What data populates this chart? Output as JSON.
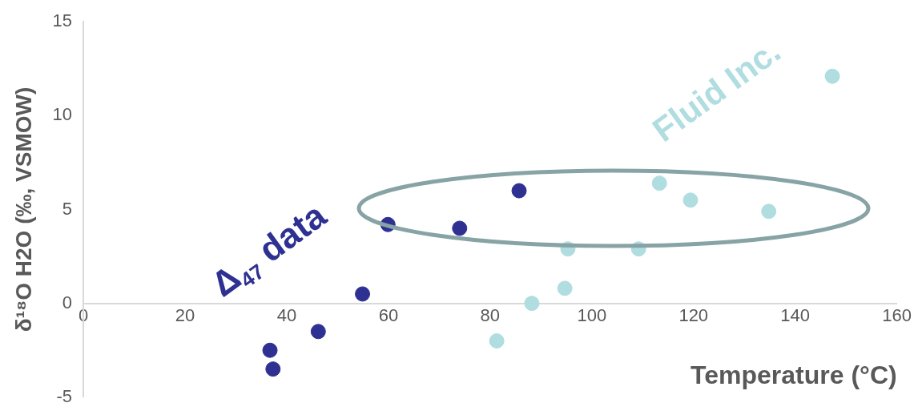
{
  "chart_data": {
    "type": "scatter",
    "xlabel": "Temperature (°C)",
    "ylabel": "δ¹⁸O H2O (‰, VSMOW)",
    "xlim": [
      0,
      160
    ],
    "xticks": [
      0,
      20,
      40,
      60,
      80,
      100,
      120,
      140,
      160
    ],
    "ylim": [
      -5,
      15
    ],
    "yticks": [
      -5,
      0,
      5,
      10,
      15
    ],
    "grid": false,
    "legend": false,
    "marker": "circle",
    "series": [
      {
        "name": "Δ$_{47}$ data",
        "color": "#2e3192",
        "x": [
          36.7,
          37.3,
          46.2,
          54.9,
          59.9,
          74.0,
          85.7
        ],
        "values": [
          -2.5,
          -3.5,
          -1.5,
          0.5,
          4.2,
          4.0,
          6.0
        ]
      },
      {
        "name": "Fluid Inc.",
        "color": "#b0dde0",
        "x": [
          81.3,
          88.2,
          94.7,
          95.3,
          109.2,
          113.3,
          119.4,
          134.8,
          147.3
        ],
        "values": [
          -2.0,
          0.0,
          0.8,
          2.9,
          2.9,
          6.4,
          5.5,
          4.9,
          12.1
        ]
      }
    ]
  }
}
